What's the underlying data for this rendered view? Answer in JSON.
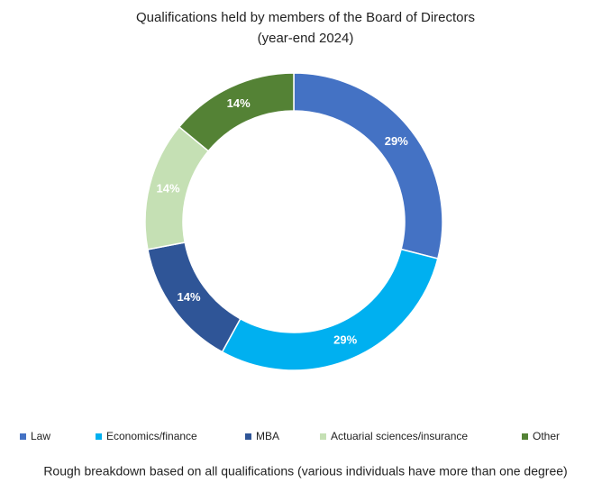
{
  "chart_data": {
    "type": "donut",
    "title": "Qualifications held by members of the Board of Directors",
    "subtitle": "(year-end 2024)",
    "categories": [
      "Law",
      "Economics/finance",
      "MBA",
      "Actuarial sciences/insurance",
      "Other"
    ],
    "values": [
      29,
      29,
      14,
      14,
      14
    ],
    "value_labels": [
      "29%",
      "29%",
      "14%",
      "14%",
      "14%"
    ],
    "colors": [
      "#4472c4",
      "#00b0f0",
      "#2f5597",
      "#c5e0b4",
      "#548235"
    ],
    "legend": "bottom",
    "footnote": "Rough breakdown based on all qualifications (various individuals have more than one degree)"
  }
}
